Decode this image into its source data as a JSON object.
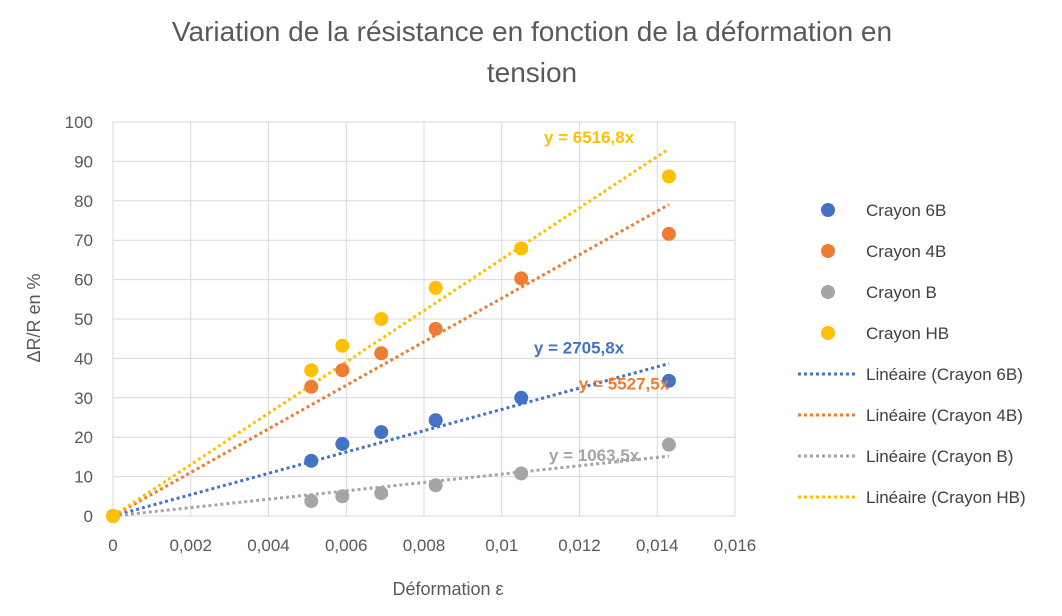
{
  "chart_data": {
    "type": "scatter",
    "title_lines": [
      "Variation de la résistance en fonction de la déformation en",
      "tension"
    ],
    "xlabel": "Déformation ε",
    "ylabel": "ΔR/R en %",
    "xlim": [
      0,
      0.016
    ],
    "ylim": [
      0,
      100
    ],
    "x_ticks": [
      0,
      0.002,
      0.004,
      0.006,
      0.008,
      0.01,
      0.012,
      0.014,
      0.016
    ],
    "x_tick_labels": [
      "0",
      "0,002",
      "0,004",
      "0,006",
      "0,008",
      "0,01",
      "0,012",
      "0,014",
      "0,016"
    ],
    "y_ticks": [
      0,
      10,
      20,
      30,
      40,
      50,
      60,
      70,
      80,
      90,
      100
    ],
    "y_tick_labels": [
      "0",
      "10",
      "20",
      "30",
      "40",
      "50",
      "60",
      "70",
      "80",
      "90",
      "100"
    ],
    "grid": true,
    "legend_position": "right",
    "series": [
      {
        "name": "Crayon 6B",
        "color": "#4472C4",
        "x": [
          0,
          0.0051,
          0.0059,
          0.0069,
          0.0083,
          0.0105,
          0.0143
        ],
        "y": [
          0,
          14,
          18.3,
          21.3,
          24.3,
          30,
          34.3
        ],
        "trend_name": "Linéaire (Crayon 6B)",
        "slope": 2705.8,
        "equation": "y = 2705,8x"
      },
      {
        "name": "Crayon 4B",
        "color": "#ED7D31",
        "x": [
          0,
          0.0051,
          0.0059,
          0.0069,
          0.0083,
          0.0105,
          0.0143
        ],
        "y": [
          0,
          32.8,
          37,
          41.3,
          47.5,
          60.3,
          71.6
        ],
        "trend_name": "Linéaire (Crayon 4B)",
        "slope": 5527.5,
        "equation": "y = 5527,5x"
      },
      {
        "name": "Crayon B",
        "color": "#A5A5A5",
        "x": [
          0,
          0.0051,
          0.0059,
          0.0069,
          0.0083,
          0.0105,
          0.0143
        ],
        "y": [
          0,
          3.8,
          5,
          5.8,
          7.8,
          10.8,
          18.1
        ],
        "trend_name": "Linéaire (Crayon B)",
        "slope": 1063.5,
        "equation": "y = 1063,5x"
      },
      {
        "name": "Crayon HB",
        "color": "#FFC000",
        "x": [
          0,
          0.0051,
          0.0059,
          0.0069,
          0.0083,
          0.0105,
          0.0143
        ],
        "y": [
          0,
          37,
          43.2,
          50,
          57.9,
          67.9,
          86.2
        ],
        "trend_name": "Linéaire (Crayon HB)",
        "slope": 6516.8,
        "equation": "y = 6516,8x"
      }
    ]
  }
}
